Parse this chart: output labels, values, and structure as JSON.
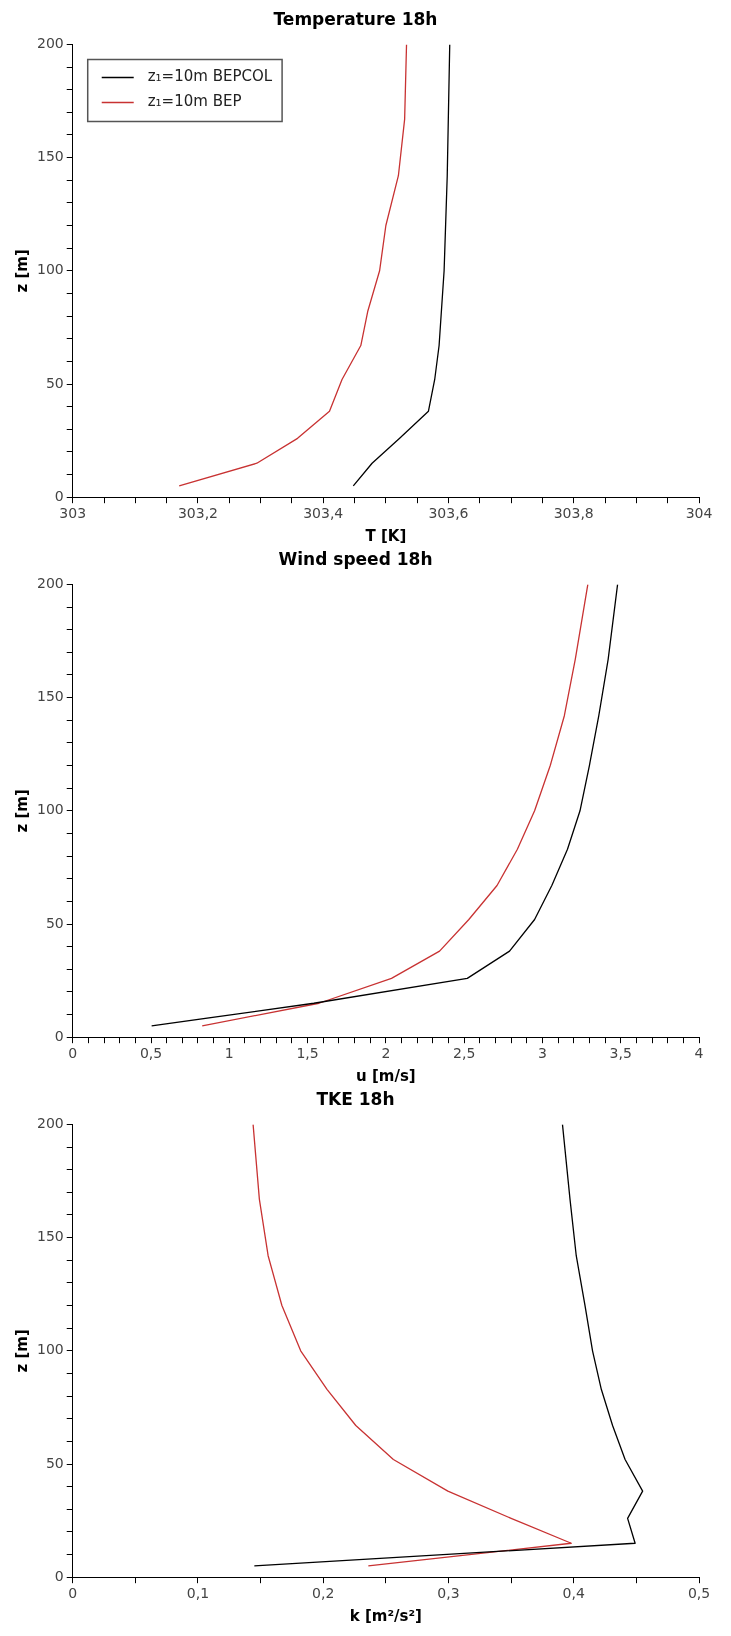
{
  "chart_data": [
    {
      "type": "line",
      "title": "Temperature 18h",
      "xlabel": "T [K]",
      "ylabel": "z [m]",
      "legend": "top left",
      "marker": "none",
      "line_style": "solid",
      "grid": false,
      "xlim": [
        303,
        304
      ],
      "xticks": [
        303,
        {
          "value": 303.05,
          "label": null
        },
        {
          "value": 303.1,
          "label": null
        },
        {
          "value": 303.15,
          "label": null
        },
        {
          "value": 303.2,
          "label": "303,2"
        },
        {
          "value": 303.25,
          "label": null
        },
        {
          "value": 303.3,
          "label": null
        },
        {
          "value": 303.35,
          "label": null
        },
        {
          "value": 303.4,
          "label": "303,4"
        },
        {
          "value": 303.45,
          "label": null
        },
        {
          "value": 303.5,
          "label": null
        },
        {
          "value": 303.55,
          "label": null
        },
        {
          "value": 303.6,
          "label": "303,6"
        },
        {
          "value": 303.65,
          "label": null
        },
        {
          "value": 303.7,
          "label": null
        },
        {
          "value": 303.75,
          "label": null
        },
        {
          "value": 303.8,
          "label": "303,8"
        },
        {
          "value": 303.85,
          "label": null
        },
        {
          "value": 303.9,
          "label": null
        },
        {
          "value": 303.95,
          "label": null
        },
        304
      ],
      "ylim": [
        0,
        200
      ],
      "yticks": [
        0,
        {
          "value": 10,
          "label": null
        },
        {
          "value": 20,
          "label": null
        },
        {
          "value": 30,
          "label": null
        },
        {
          "value": 40,
          "label": null
        },
        50,
        {
          "value": 60,
          "label": null
        },
        {
          "value": 70,
          "label": null
        },
        {
          "value": 80,
          "label": null
        },
        {
          "value": 90,
          "label": null
        },
        100,
        {
          "value": 110,
          "label": null
        },
        {
          "value": 120,
          "label": null
        },
        {
          "value": 130,
          "label": null
        },
        {
          "value": 140,
          "label": null
        },
        150,
        {
          "value": 160,
          "label": null
        },
        {
          "value": 170,
          "label": null
        },
        {
          "value": 180,
          "label": null
        },
        {
          "value": 190,
          "label": null
        },
        200
      ],
      "series": [
        {
          "name": "z₁=10m BEPCOL",
          "color": "#000000",
          "x": [
            303.448,
            303.478,
            303.522,
            303.568,
            303.578,
            303.585,
            303.593,
            303.598,
            303.602
          ],
          "values": [
            5,
            15,
            26,
            38,
            52,
            67,
            100,
            142,
            200
          ]
        },
        {
          "name": "z₁=10m BEP",
          "color": "#c83232",
          "x": [
            303.17,
            303.294,
            303.359,
            303.41,
            303.43,
            303.46,
            303.471,
            303.49,
            303.5,
            303.52,
            303.53,
            303.533
          ],
          "values": [
            5,
            15,
            26,
            38,
            52,
            67,
            82,
            100,
            120,
            142,
            167,
            200
          ]
        }
      ]
    },
    {
      "type": "line",
      "title": "Wind speed 18h",
      "xlabel": "u [m/s]",
      "ylabel": "z [m]",
      "marker": "none",
      "line_style": "solid",
      "grid": false,
      "xlim": [
        0,
        4
      ],
      "xticks": [
        0,
        {
          "value": 0.1,
          "label": null
        },
        {
          "value": 0.2,
          "label": null
        },
        {
          "value": 0.3,
          "label": null
        },
        {
          "value": 0.4,
          "label": null
        },
        {
          "value": 0.5,
          "label": "0,5"
        },
        {
          "value": 0.6,
          "label": null
        },
        {
          "value": 0.7,
          "label": null
        },
        {
          "value": 0.8,
          "label": null
        },
        {
          "value": 0.9,
          "label": null
        },
        1,
        {
          "value": 1.1,
          "label": null
        },
        {
          "value": 1.2,
          "label": null
        },
        {
          "value": 1.3,
          "label": null
        },
        {
          "value": 1.4,
          "label": null
        },
        {
          "value": 1.5,
          "label": "1,5"
        },
        {
          "value": 1.6,
          "label": null
        },
        {
          "value": 1.7,
          "label": null
        },
        {
          "value": 1.8,
          "label": null
        },
        {
          "value": 1.9,
          "label": null
        },
        2,
        {
          "value": 2.1,
          "label": null
        },
        {
          "value": 2.2,
          "label": null
        },
        {
          "value": 2.3,
          "label": null
        },
        {
          "value": 2.4,
          "label": null
        },
        {
          "value": 2.5,
          "label": "2,5"
        },
        {
          "value": 2.6,
          "label": null
        },
        {
          "value": 2.7,
          "label": null
        },
        {
          "value": 2.8,
          "label": null
        },
        {
          "value": 2.9,
          "label": null
        },
        3,
        {
          "value": 3.1,
          "label": null
        },
        {
          "value": 3.2,
          "label": null
        },
        {
          "value": 3.3,
          "label": null
        },
        {
          "value": 3.4,
          "label": null
        },
        {
          "value": 3.5,
          "label": "3,5"
        },
        {
          "value": 3.6,
          "label": null
        },
        {
          "value": 3.7,
          "label": null
        },
        {
          "value": 3.8,
          "label": null
        },
        {
          "value": 3.9,
          "label": null
        },
        4
      ],
      "ylim": [
        0,
        200
      ],
      "yticks": [
        0,
        {
          "value": 10,
          "label": null
        },
        {
          "value": 20,
          "label": null
        },
        {
          "value": 30,
          "label": null
        },
        {
          "value": 40,
          "label": null
        },
        50,
        {
          "value": 60,
          "label": null
        },
        {
          "value": 70,
          "label": null
        },
        {
          "value": 80,
          "label": null
        },
        {
          "value": 90,
          "label": null
        },
        100,
        {
          "value": 110,
          "label": null
        },
        {
          "value": 120,
          "label": null
        },
        {
          "value": 130,
          "label": null
        },
        {
          "value": 140,
          "label": null
        },
        150,
        {
          "value": 160,
          "label": null
        },
        {
          "value": 170,
          "label": null
        },
        {
          "value": 180,
          "label": null
        },
        {
          "value": 190,
          "label": null
        },
        200
      ],
      "series": [
        {
          "color": "#000000",
          "x": [
            0.504,
            1.54,
            2.52,
            2.79,
            2.95,
            3.06,
            3.16,
            3.24,
            3.3,
            3.36,
            3.42,
            3.48
          ],
          "values": [
            5,
            15,
            26,
            38,
            52,
            67,
            83,
            100,
            120,
            142,
            167,
            200
          ]
        },
        {
          "color": "#c83232",
          "x": [
            0.827,
            1.573,
            2.036,
            2.343,
            2.53,
            2.71,
            2.84,
            2.95,
            3.05,
            3.14,
            3.21,
            3.29
          ],
          "values": [
            5,
            15,
            26,
            38,
            52,
            67,
            83,
            100,
            120,
            142,
            167,
            200
          ]
        }
      ]
    },
    {
      "type": "line",
      "title": "TKE 18h",
      "xlabel": "k [m²/s²]",
      "ylabel": "z [m]",
      "marker": "none",
      "line_style": "solid",
      "grid": false,
      "xlim": [
        0,
        0.5
      ],
      "xticks": [
        0,
        {
          "value": 0.05,
          "label": null
        },
        {
          "value": 0.1,
          "label": "0,1"
        },
        {
          "value": 0.15,
          "label": null
        },
        {
          "value": 0.2,
          "label": "0,2"
        },
        {
          "value": 0.25,
          "label": null
        },
        {
          "value": 0.3,
          "label": "0,3"
        },
        {
          "value": 0.35,
          "label": null
        },
        {
          "value": 0.4,
          "label": "0,4"
        },
        {
          "value": 0.45,
          "label": null
        },
        {
          "value": 0.5,
          "label": "0,5"
        }
      ],
      "ylim": [
        0,
        200
      ],
      "yticks": [
        0,
        {
          "value": 10,
          "label": null
        },
        {
          "value": 20,
          "label": null
        },
        {
          "value": 30,
          "label": null
        },
        {
          "value": 40,
          "label": null
        },
        50,
        {
          "value": 60,
          "label": null
        },
        {
          "value": 70,
          "label": null
        },
        {
          "value": 80,
          "label": null
        },
        {
          "value": 90,
          "label": null
        },
        100,
        {
          "value": 110,
          "label": null
        },
        {
          "value": 120,
          "label": null
        },
        {
          "value": 130,
          "label": null
        },
        {
          "value": 140,
          "label": null
        },
        150,
        {
          "value": 160,
          "label": null
        },
        {
          "value": 170,
          "label": null
        },
        {
          "value": 180,
          "label": null
        },
        {
          "value": 190,
          "label": null
        },
        200
      ],
      "series": [
        {
          "color": "#000000",
          "x": [
            0.145,
            0.449,
            0.443,
            0.455,
            0.441,
            0.431,
            0.422,
            0.415,
            0.409,
            0.402,
            0.397,
            0.391
          ],
          "values": [
            5,
            15,
            26,
            38,
            52,
            67,
            83,
            100,
            120,
            142,
            167,
            200
          ]
        },
        {
          "color": "#c83232",
          "x": [
            0.236,
            0.398,
            0.35,
            0.2995,
            0.256,
            0.226,
            0.203,
            0.182,
            0.167,
            0.156,
            0.149,
            0.144
          ],
          "values": [
            5,
            15,
            26,
            38,
            52,
            67,
            83,
            100,
            120,
            142,
            167,
            200
          ]
        }
      ]
    }
  ]
}
